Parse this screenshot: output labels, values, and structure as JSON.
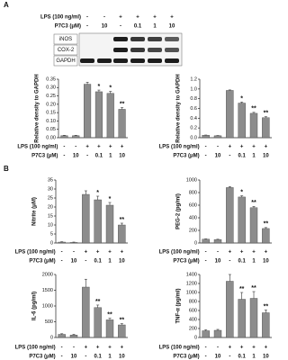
{
  "panels": [
    {
      "label": "A"
    },
    {
      "label": "B"
    }
  ],
  "blot": {
    "conditions": [
      {
        "label": "LPS (100 ng/ml)",
        "values": [
          "-",
          "-",
          "+",
          "+",
          "+",
          "+"
        ]
      },
      {
        "label": "P7C3 (μM)",
        "values": [
          "-",
          "10",
          "-",
          "0.1",
          "1",
          "10"
        ]
      }
    ],
    "bands": [
      "iNOS",
      "COX-2",
      "GAPDH"
    ]
  },
  "chart_data": [
    {
      "type": "bar",
      "ylabel": "Relative density to GAPDH",
      "ylim": [
        0,
        0.35
      ],
      "yticks": [
        {
          "value": 0,
          "label": "0.00"
        },
        0.05,
        {
          "value": 0.1,
          "label": "0.10"
        },
        0.15,
        {
          "value": 0.2,
          "label": "0.20"
        },
        0.25,
        {
          "value": 0.3,
          "label": "0.30"
        },
        0.35
      ],
      "values": [
        0.012,
        0.012,
        0.32,
        0.275,
        0.265,
        0.17
      ],
      "errors": [
        0.002,
        0.002,
        0.012,
        0.01,
        0.012,
        0.01
      ],
      "significance": [
        null,
        null,
        null,
        "*",
        "*",
        "**"
      ],
      "color": "#8c8c8c",
      "conditions": [
        {
          "label": "LPS (100 ng/ml)",
          "values": [
            "-",
            "-",
            "+",
            "+",
            "+",
            "+"
          ]
        },
        {
          "label": "P7C3 (μM)",
          "values": [
            "-",
            "10",
            "-",
            "0.1",
            "1",
            "10"
          ]
        }
      ]
    },
    {
      "type": "bar",
      "ylabel": "Relative density to GAPDH",
      "ylim": [
        0,
        1.2
      ],
      "yticks": [
        {
          "value": 0,
          "label": "0.0"
        },
        0.2,
        0.4,
        0.6,
        0.8,
        {
          "value": 1,
          "label": "1.0"
        },
        1.2
      ],
      "values": [
        0.05,
        0.04,
        0.97,
        0.71,
        0.5,
        0.41
      ],
      "errors": [
        0.005,
        0.005,
        0.01,
        0.02,
        0.02,
        0.02
      ],
      "significance": [
        null,
        null,
        null,
        "*",
        "**",
        "**"
      ],
      "color": "#8c8c8c",
      "conditions": [
        {
          "label": "LPS (100 ng/ml)",
          "values": [
            "-",
            "-",
            "+",
            "+",
            "+",
            "+"
          ]
        },
        {
          "label": "P7C3 (μM)",
          "values": [
            "-",
            "10",
            "-",
            "0.1",
            "1",
            "10"
          ]
        }
      ]
    },
    {
      "type": "bar",
      "ylabel": "Nitrite (μM)",
      "ylim": [
        0,
        35
      ],
      "yticks": [
        0,
        5,
        10,
        15,
        20,
        25,
        30,
        35
      ],
      "values": [
        0.5,
        0.3,
        27,
        24,
        21,
        10
      ],
      "errors": [
        0.2,
        0.2,
        2,
        2,
        1.5,
        1
      ],
      "significance": [
        null,
        null,
        null,
        "*",
        "*",
        "**"
      ],
      "color": "#8c8c8c",
      "conditions": [
        {
          "label": "LPS (100 ng/ml)",
          "values": [
            "-",
            "-",
            "+",
            "+",
            "+",
            "+"
          ]
        },
        {
          "label": "P7C3 (μM)",
          "values": [
            "-",
            "10",
            "-",
            "0.1",
            "1",
            "10"
          ]
        }
      ]
    },
    {
      "type": "bar",
      "ylabel": "PEG-2 (pg/ml)",
      "ylim": [
        0,
        1000
      ],
      "yticks": [
        0,
        200,
        400,
        600,
        800,
        1000
      ],
      "values": [
        60,
        55,
        880,
        730,
        560,
        230
      ],
      "errors": [
        5,
        5,
        15,
        20,
        20,
        15
      ],
      "significance": [
        null,
        null,
        null,
        "*",
        "**",
        "**"
      ],
      "color": "#8c8c8c",
      "conditions": [
        {
          "label": "LPS (100 ng/ml)",
          "values": [
            "-",
            "-",
            "+",
            "+",
            "+",
            "+"
          ]
        },
        {
          "label": "P7C3 (μM)",
          "values": [
            "-",
            "10",
            "-",
            "0.1",
            "1",
            "10"
          ]
        }
      ]
    },
    {
      "type": "bar",
      "ylabel": "IL-6 (pg/ml)",
      "ylim": [
        0,
        2000
      ],
      "yticks": [
        0,
        500,
        1000,
        1500,
        2000
      ],
      "values": [
        100,
        80,
        1600,
        950,
        560,
        400
      ],
      "errors": [
        20,
        20,
        250,
        80,
        50,
        40
      ],
      "significance": [
        null,
        null,
        null,
        "**",
        "**",
        "**"
      ],
      "color": "#8c8c8c",
      "conditions": [
        {
          "label": "LPS (100 ng/ml)",
          "values": [
            "-",
            "-",
            "+",
            "+",
            "+",
            "+"
          ]
        },
        {
          "label": "P7C3 (μM)",
          "values": [
            "-",
            "10",
            "-",
            "0.1",
            "1",
            "10"
          ]
        }
      ]
    },
    {
      "type": "bar",
      "ylabel": "TNF-α (pg/ml)",
      "ylim": [
        0,
        1400
      ],
      "yticks": [
        0,
        200,
        400,
        600,
        800,
        1000,
        1200,
        1400
      ],
      "values": [
        150,
        160,
        1250,
        850,
        870,
        550
      ],
      "errors": [
        20,
        20,
        150,
        150,
        150,
        60
      ],
      "significance": [
        null,
        null,
        null,
        "**",
        "**",
        "**"
      ],
      "color": "#8c8c8c",
      "conditions": [
        {
          "label": "LPS (100 ng/ml)",
          "values": [
            "-",
            "-",
            "+",
            "+",
            "+",
            "+"
          ]
        },
        {
          "label": "P7C3 (μM)",
          "values": [
            "-",
            "10",
            "-",
            "0.1",
            "1",
            "10"
          ]
        }
      ]
    }
  ]
}
